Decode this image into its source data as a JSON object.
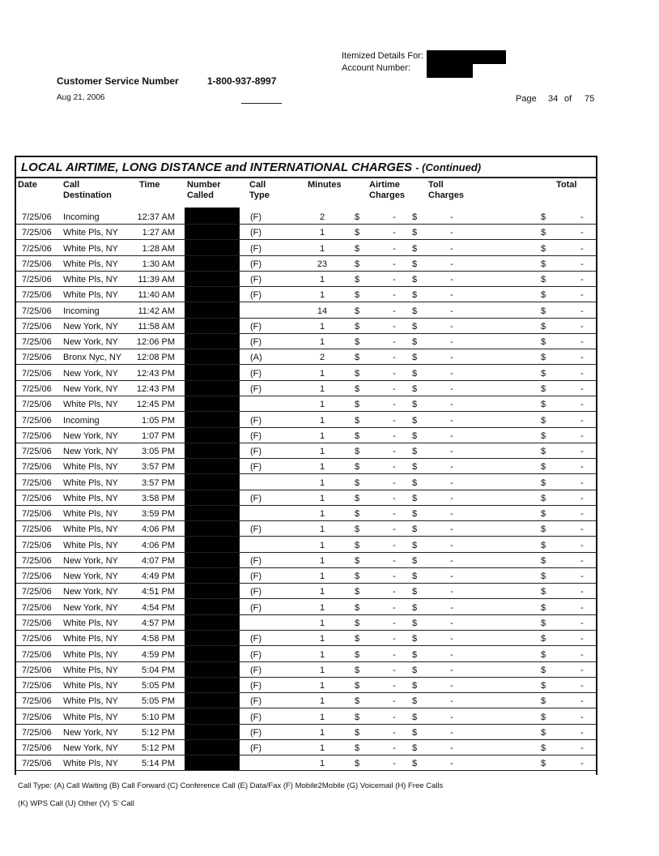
{
  "header": {
    "itemized_label": "Itemized Details For:",
    "account_label": "Account Number:",
    "service_label": "Customer Service Number",
    "service_number": "1-800-937-8997",
    "date": "Aug 21, 2006",
    "page_label": "Page",
    "page": 34,
    "of_label": "of",
    "page_total": 75
  },
  "table": {
    "title": "LOCAL AIRTIME, LONG DISTANCE and INTERNATIONAL CHARGES",
    "title_suffix": "- (Continued)",
    "currency": "$",
    "columns": [
      [
        "Date"
      ],
      [
        "Call",
        "Destination"
      ],
      [
        "Time"
      ],
      [
        "Number",
        "Called"
      ],
      [
        "Call",
        "Type"
      ],
      [
        "Minutes"
      ],
      [
        "Airtime",
        "Charges"
      ],
      [
        "Toll",
        "Charges"
      ],
      [
        "Total"
      ]
    ],
    "rows": [
      [
        "7/25/06",
        "Incoming",
        "12:37 AM",
        "(F)",
        2,
        "-",
        "-",
        "-"
      ],
      [
        "7/25/06",
        "White Pls, NY",
        "1:27 AM",
        "(F)",
        1,
        "-",
        "-",
        "-"
      ],
      [
        "7/25/06",
        "White Pls, NY",
        "1:28 AM",
        "(F)",
        1,
        "-",
        "-",
        "-"
      ],
      [
        "7/25/06",
        "White Pls, NY",
        "1:30 AM",
        "(F)",
        23,
        "-",
        "-",
        "-"
      ],
      [
        "7/25/06",
        "White Pls, NY",
        "11:39 AM",
        "(F)",
        1,
        "-",
        "-",
        "-"
      ],
      [
        "7/25/06",
        "White Pls, NY",
        "11:40 AM",
        "(F)",
        1,
        "-",
        "-",
        "-"
      ],
      [
        "7/25/06",
        "Incoming",
        "11:42 AM",
        null,
        14,
        "-",
        "-",
        "-"
      ],
      [
        "7/25/06",
        "New York, NY",
        "11:58 AM",
        "(F)",
        1,
        "-",
        "-",
        "-"
      ],
      [
        "7/25/06",
        "New York, NY",
        "12:06 PM",
        "(F)",
        1,
        "-",
        "-",
        "-"
      ],
      [
        "7/25/06",
        "Bronx Nyc, NY",
        "12:08 PM",
        "(A)",
        2,
        "-",
        "-",
        "-"
      ],
      [
        "7/25/06",
        "New York, NY",
        "12:43 PM",
        "(F)",
        1,
        "-",
        "-",
        "-"
      ],
      [
        "7/25/06",
        "New York, NY",
        "12:43 PM",
        "(F)",
        1,
        "-",
        "-",
        "-"
      ],
      [
        "7/25/06",
        "White Pls, NY",
        "12:45 PM",
        null,
        1,
        "-",
        "-",
        "-"
      ],
      [
        "7/25/06",
        "Incoming",
        "1:05 PM",
        "(F)",
        1,
        "-",
        "-",
        "-"
      ],
      [
        "7/25/06",
        "New York, NY",
        "1:07 PM",
        "(F)",
        1,
        "-",
        "-",
        "-"
      ],
      [
        "7/25/06",
        "New York, NY",
        "3:05 PM",
        "(F)",
        1,
        "-",
        "-",
        "-"
      ],
      [
        "7/25/06",
        "White Pls, NY",
        "3:57 PM",
        "(F)",
        1,
        "-",
        "-",
        "-"
      ],
      [
        "7/25/06",
        "White Pls, NY",
        "3:57 PM",
        null,
        1,
        "-",
        "-",
        "-"
      ],
      [
        "7/25/06",
        "White Pls, NY",
        "3:58 PM",
        "(F)",
        1,
        "-",
        "-",
        "-"
      ],
      [
        "7/25/06",
        "White Pls, NY",
        "3:59 PM",
        null,
        1,
        "-",
        "-",
        "-"
      ],
      [
        "7/25/06",
        "White Pls, NY",
        "4:06 PM",
        "(F)",
        1,
        "-",
        "-",
        "-"
      ],
      [
        "7/25/06",
        "White Pls, NY",
        "4:06 PM",
        null,
        1,
        "-",
        "-",
        "-"
      ],
      [
        "7/25/06",
        "New York, NY",
        "4:07 PM",
        "(F)",
        1,
        "-",
        "-",
        "-"
      ],
      [
        "7/25/06",
        "New York, NY",
        "4:49 PM",
        "(F)",
        1,
        "-",
        "-",
        "-"
      ],
      [
        "7/25/06",
        "New York, NY",
        "4:51 PM",
        "(F)",
        1,
        "-",
        "-",
        "-"
      ],
      [
        "7/25/06",
        "New York, NY",
        "4:54 PM",
        "(F)",
        1,
        "-",
        "-",
        "-"
      ],
      [
        "7/25/06",
        "White Pls, NY",
        "4:57 PM",
        null,
        1,
        "-",
        "-",
        "-"
      ],
      [
        "7/25/06",
        "White Pls, NY",
        "4:58 PM",
        "(F)",
        1,
        "-",
        "-",
        "-"
      ],
      [
        "7/25/06",
        "White Pls, NY",
        "4:59 PM",
        "(F)",
        1,
        "-",
        "-",
        "-"
      ],
      [
        "7/25/06",
        "White Pls, NY",
        "5:04 PM",
        "(F)",
        1,
        "-",
        "-",
        "-"
      ],
      [
        "7/25/06",
        "White Pls, NY",
        "5:05 PM",
        "(F)",
        1,
        "-",
        "-",
        "-"
      ],
      [
        "7/25/06",
        "White Pls, NY",
        "5:05 PM",
        "(F)",
        1,
        "-",
        "-",
        "-"
      ],
      [
        "7/25/06",
        "White Pls, NY",
        "5:10 PM",
        "(F)",
        1,
        "-",
        "-",
        "-"
      ],
      [
        "7/25/06",
        "New York, NY",
        "5:12 PM",
        "(F)",
        1,
        "-",
        "-",
        "-"
      ],
      [
        "7/25/06",
        "New York, NY",
        "5:12 PM",
        "(F)",
        1,
        "-",
        "-",
        "-"
      ],
      [
        "7/25/06",
        "White Pls, NY",
        "5:14 PM",
        null,
        1,
        "-",
        "-",
        "-"
      ]
    ]
  },
  "footer": [
    "Call Type: (A) Call Waiting (B) Call Forward (C) Conference Call (E) Data/Fax (F) Mobile2Mobile (G) Voicemail (H) Free Calls",
    "(K) WPS Call (U) Other (V) '5' Call"
  ]
}
